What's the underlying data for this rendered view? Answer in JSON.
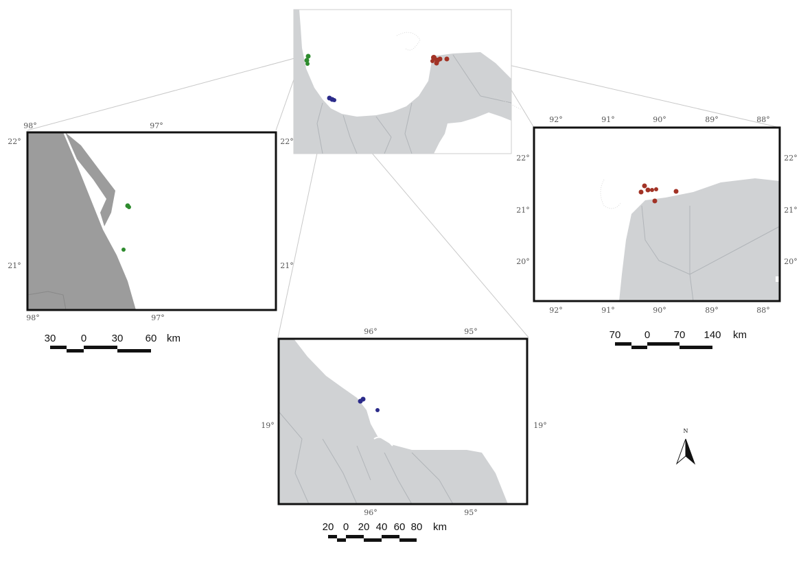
{
  "colors": {
    "land_light": "#cfd1d3",
    "land_dark": "#9c9c9c",
    "border": "#111111",
    "site_north": "#2e8b2e",
    "site_central": "#2b2b8a",
    "site_east": "#a23326"
  },
  "overview": {
    "sites": [
      {
        "group": "north",
        "points": 3
      },
      {
        "group": "central",
        "points": 3
      },
      {
        "group": "east",
        "points": 6
      }
    ]
  },
  "inset_north": {
    "top_labels": [
      "98°",
      "97°"
    ],
    "bottom_labels": [
      "98°",
      "97°"
    ],
    "left_labels": [
      "22°",
      "21°"
    ],
    "right_labels": [
      "22°",
      "21°"
    ],
    "scale": {
      "labels": [
        "30",
        "0",
        "30",
        "60",
        "km"
      ]
    }
  },
  "inset_east": {
    "top_labels": [
      "92°",
      "91°",
      "90°",
      "89°",
      "88°"
    ],
    "bottom_labels": [
      "92°",
      "91°",
      "90°",
      "89°",
      "88°"
    ],
    "left_labels": [
      "22°",
      "21°",
      "20°"
    ],
    "right_labels": [
      "22°",
      "21°",
      "20°"
    ],
    "scale": {
      "labels": [
        "70",
        "0",
        "70",
        "140",
        "km"
      ]
    }
  },
  "inset_central": {
    "top_labels": [
      "96°",
      "95°"
    ],
    "bottom_labels": [
      "96°",
      "95°"
    ],
    "left_labels": [
      "19°"
    ],
    "right_labels": [
      "19°"
    ],
    "scale": {
      "labels": [
        "20",
        "0",
        "20",
        "40",
        "60",
        "80",
        "km"
      ]
    }
  },
  "north_arrow": {
    "label": "N",
    "icon": "north-arrow-icon"
  }
}
